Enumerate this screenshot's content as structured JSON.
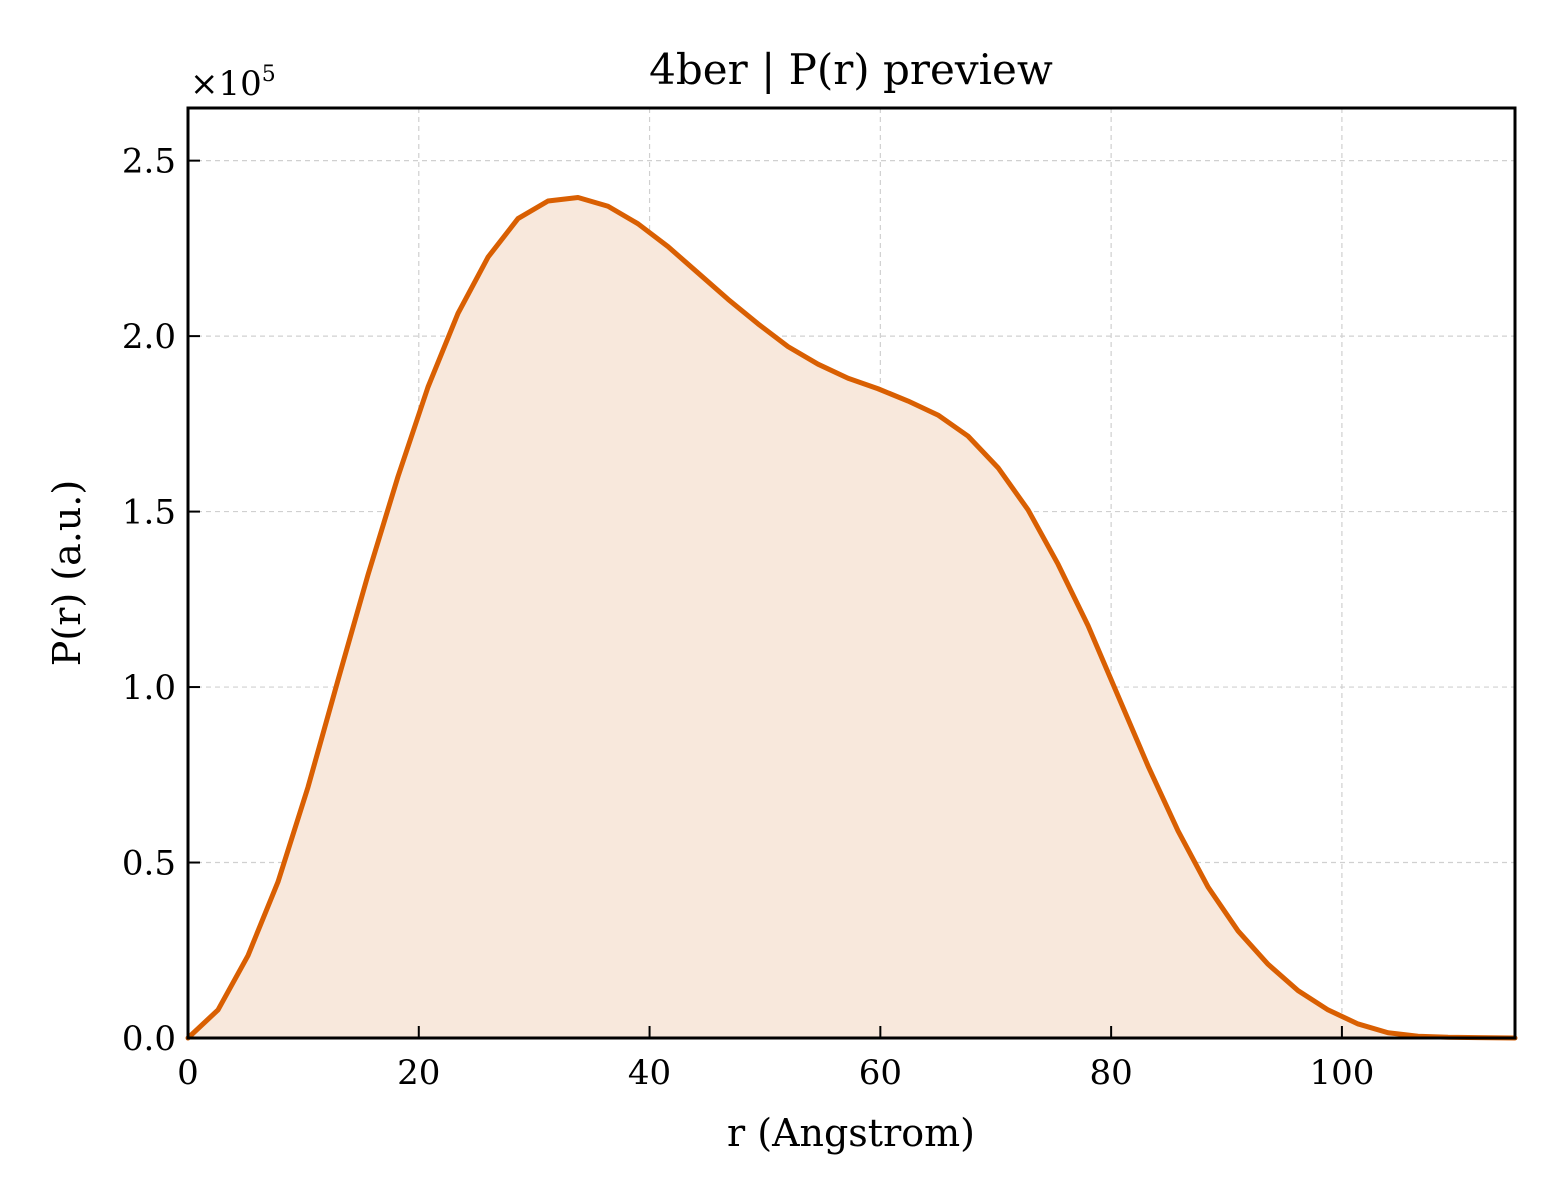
{
  "chart_data": {
    "type": "area",
    "title": "4ber | P(r) preview",
    "xlabel": "r (Angstrom)",
    "ylabel": "P(r) (a.u.)",
    "y_multiplier_base": "×10",
    "y_multiplier_exponent": "5",
    "xlim": [
      0,
      115
    ],
    "ylim": [
      0,
      2.65
    ],
    "xticks": [
      0,
      20,
      40,
      60,
      80,
      100
    ],
    "xtick_labels": [
      "0",
      "20",
      "40",
      "60",
      "80",
      "100"
    ],
    "yticks": [
      0,
      0.5,
      1.0,
      1.5,
      2.0,
      2.5
    ],
    "ytick_labels": [
      "0.0",
      "0.5",
      "1.0",
      "1.5",
      "2.0",
      "2.5"
    ],
    "grid": true,
    "colors": {
      "line": "#d95f02",
      "fill": "#f8e8dc"
    },
    "series": [
      {
        "x": [
          0,
          2.6,
          5.2,
          7.8,
          10.4,
          13.0,
          15.6,
          18.2,
          20.8,
          23.4,
          26.0,
          28.6,
          31.2,
          33.8,
          36.4,
          39.0,
          41.6,
          44.2,
          46.8,
          49.4,
          52.0,
          54.6,
          57.2,
          59.8,
          62.4,
          65.0,
          67.6,
          70.2,
          72.8,
          75.4,
          78.0,
          80.6,
          83.2,
          85.8,
          88.4,
          91.0,
          93.6,
          96.2,
          98.8,
          101.4,
          104.0,
          106.6,
          109.2,
          111.8,
          115.0
        ],
        "y": [
          0.0,
          0.08,
          0.235,
          0.445,
          0.715,
          1.02,
          1.32,
          1.6,
          1.855,
          2.065,
          2.225,
          2.335,
          2.385,
          2.395,
          2.37,
          2.32,
          2.255,
          2.18,
          2.105,
          2.035,
          1.97,
          1.92,
          1.88,
          1.85,
          1.815,
          1.775,
          1.715,
          1.625,
          1.505,
          1.35,
          1.175,
          0.975,
          0.775,
          0.59,
          0.43,
          0.305,
          0.21,
          0.135,
          0.08,
          0.04,
          0.015,
          0.005,
          0.002,
          0.001,
          0.0
        ]
      }
    ]
  }
}
